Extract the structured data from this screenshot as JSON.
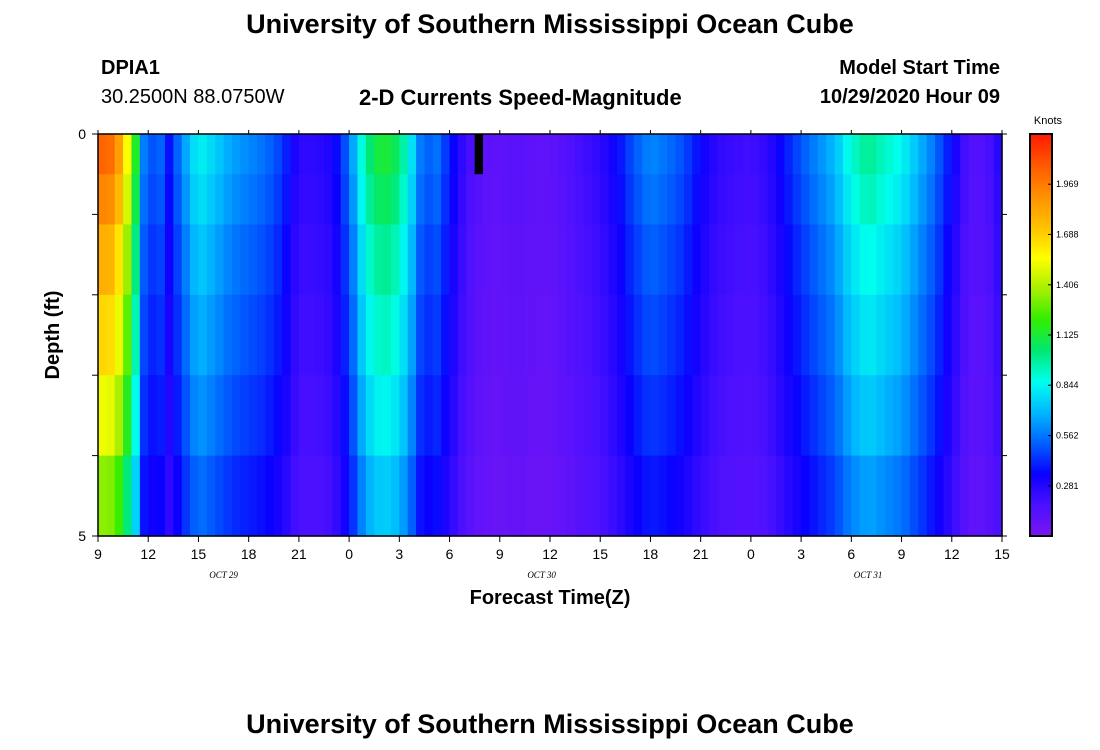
{
  "page": {
    "title": "University of Southern Mississippi Ocean Cube",
    "footer_title": "University of Southern Mississippi Ocean Cube",
    "station_id": "DPIA1",
    "station_coords": "30.2500N 88.0750W",
    "chart_title": "2-D Currents Speed-Magnitude",
    "model_start_label": "Model Start Time",
    "model_start_value": "10/29/2020 Hour 09"
  },
  "chart_data": {
    "type": "heatmap",
    "title": "2-D Currents Speed-Magnitude",
    "xlabel": "Forecast Time(Z)",
    "ylabel": "Depth (ft)",
    "colorbar_label": "Knots",
    "x_hours_from_start": [
      0,
      3,
      6,
      9,
      12,
      15,
      18,
      21,
      24,
      27,
      30,
      33,
      36,
      39,
      42,
      45,
      48,
      51,
      54
    ],
    "x_tick_labels": [
      "9",
      "12",
      "15",
      "18",
      "21",
      "0",
      "3",
      "6",
      "9",
      "12",
      "15",
      "18",
      "21",
      "0",
      "3",
      "6",
      "9",
      "12",
      "15"
    ],
    "x_range_hours": [
      0,
      54
    ],
    "date_labels": [
      {
        "text": "OCT 29",
        "hour": 7.5
      },
      {
        "text": "OCT 30",
        "hour": 26.5
      },
      {
        "text": "OCT 31",
        "hour": 46
      }
    ],
    "y_tick_labels": [
      "0",
      "5"
    ],
    "ylim": [
      0,
      5
    ],
    "y_inverted": true,
    "colorbar_ticks": [
      1.969,
      1.688,
      1.406,
      1.125,
      0.844,
      0.562,
      0.281
    ],
    "colorbar_tick_labels": [
      "1.969",
      "1.688",
      "1.406",
      "1.125",
      "0.844",
      "0.562",
      "0.281"
    ],
    "colorbar_range": [
      0,
      2.25
    ],
    "grid": false,
    "depth_levels_ft": [
      0.25,
      0.75,
      1.5,
      2.5,
      3.5,
      4.5
    ],
    "time_step_hours": 0.5,
    "time_steps": 108,
    "speed_profile_key_times": [
      0,
      1,
      2,
      2.5,
      3,
      3.5,
      4,
      5,
      6,
      7,
      8,
      9,
      10,
      11,
      12,
      13,
      14,
      15,
      16,
      17,
      18,
      19,
      19.5,
      20,
      21,
      22,
      23,
      24,
      25,
      26,
      27,
      28,
      29,
      30,
      31,
      32,
      33,
      34,
      35,
      36,
      37,
      38,
      39,
      40,
      41,
      42,
      43,
      44,
      45,
      46,
      47,
      48,
      49,
      50,
      51,
      52,
      53,
      54
    ],
    "speed_profile_key_values": [
      2.05,
      2.0,
      1.4,
      0.9,
      0.25,
      0.75,
      0.3,
      0.6,
      0.85,
      0.75,
      0.65,
      0.6,
      0.55,
      0.45,
      0.25,
      0.25,
      0.3,
      0.55,
      1.0,
      1.15,
      1.05,
      0.7,
      0.45,
      0.6,
      0.4,
      0.2,
      0.12,
      0.1,
      0.13,
      0.1,
      0.1,
      0.15,
      0.2,
      0.25,
      0.35,
      0.5,
      0.6,
      0.55,
      0.48,
      0.35,
      0.25,
      0.22,
      0.2,
      0.25,
      0.38,
      0.5,
      0.6,
      0.7,
      0.9,
      1.0,
      0.92,
      0.85,
      0.7,
      0.55,
      0.35,
      0.15,
      0.15,
      0.3
    ],
    "depth_factors": [
      1.0,
      0.95,
      0.88,
      0.82,
      0.75,
      0.66
    ],
    "notes_masked_cell": {
      "hour": 22.75,
      "depth_level": 0,
      "color": "#000000"
    }
  },
  "colors": {
    "background": "#ffffff",
    "frame": "#000000",
    "colormap": [
      "#7a16f2",
      "#4b10ff",
      "#0a00ff",
      "#0060ff",
      "#00b8ff",
      "#00ffee",
      "#00e870",
      "#33ee00",
      "#a8f000",
      "#ffff00",
      "#ffc000",
      "#ff9000",
      "#ff5800",
      "#ff1a00"
    ]
  }
}
